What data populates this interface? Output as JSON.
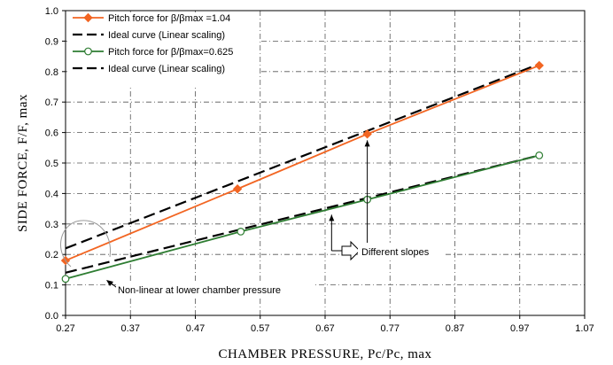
{
  "chart_data": {
    "type": "line",
    "xlabel": "CHAMBER PRESSURE, Pc/Pc, max",
    "ylabel": "SIDE FORCE, F/F, max",
    "xlim": [
      0.27,
      1.07
    ],
    "ylim": [
      0.0,
      1.0
    ],
    "x_ticks": [
      "0.27",
      "0.37",
      "0.47",
      "0.57",
      "0.67",
      "0.77",
      "0.87",
      "0.97",
      "1.07"
    ],
    "y_ticks": [
      "0.0",
      "0.1",
      "0.2",
      "0.3",
      "0.4",
      "0.5",
      "0.6",
      "0.7",
      "0.8",
      "0.9",
      "1.0"
    ],
    "grid": true,
    "legend_position": "top-left",
    "series": [
      {
        "name": "Pitch force for β/βmax =1.04",
        "color": "#f26522",
        "style": "solid",
        "marker": "diamond",
        "x": [
          0.27,
          0.535,
          0.735,
          1.0
        ],
        "y": [
          0.18,
          0.415,
          0.595,
          0.82
        ]
      },
      {
        "name": "Ideal curve (Linear scaling)",
        "color": "#000000",
        "style": "dashed",
        "marker": "none",
        "x": [
          0.27,
          1.0
        ],
        "y": [
          0.22,
          0.825
        ]
      },
      {
        "name": "Pitch force for β/βmax=0.625",
        "color": "#2e7d32",
        "style": "solid",
        "marker": "circle-open",
        "x": [
          0.27,
          0.54,
          0.735,
          1.0
        ],
        "y": [
          0.12,
          0.275,
          0.38,
          0.525
        ]
      },
      {
        "name": "Ideal curve (Linear scaling)",
        "color": "#000000",
        "style": "dashed",
        "marker": "none",
        "x": [
          0.27,
          1.0
        ],
        "y": [
          0.14,
          0.525
        ]
      }
    ],
    "annotations": [
      {
        "text": "Different slopes",
        "id": "different-slopes"
      },
      {
        "text": "Non-linear  at lower chamber pressure",
        "id": "non-linear"
      }
    ]
  }
}
